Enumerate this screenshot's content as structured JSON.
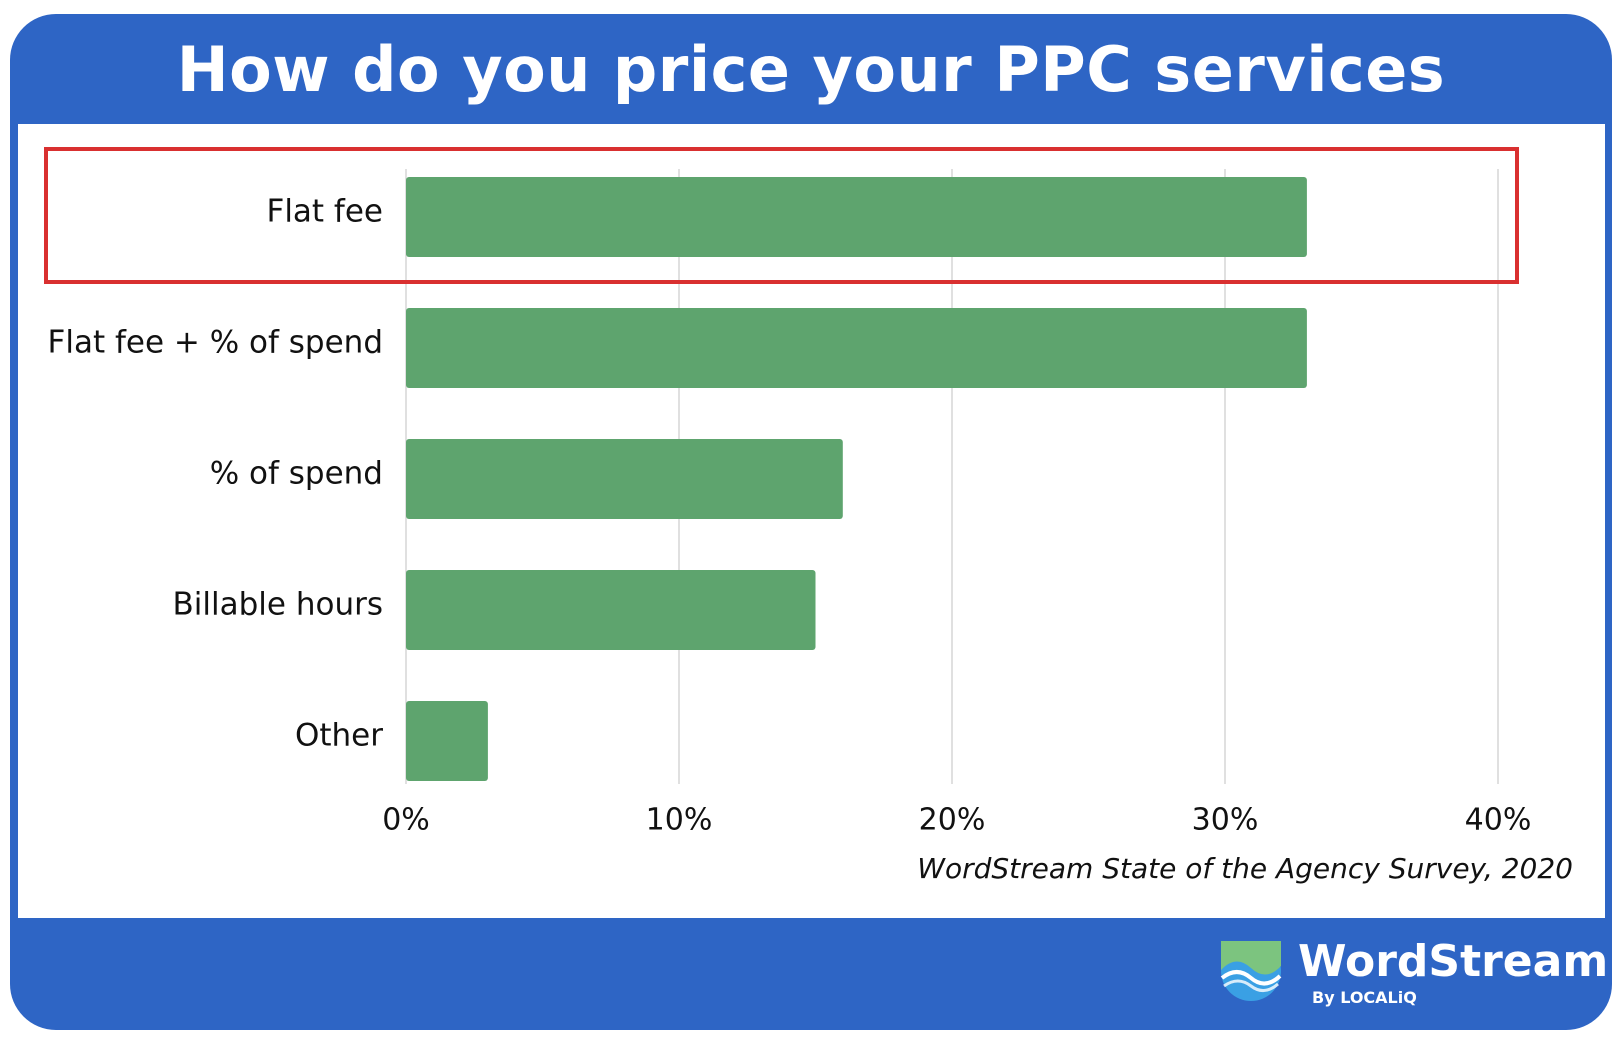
{
  "header": {
    "title": "How do you price your PPC services"
  },
  "chart_data": {
    "type": "bar",
    "orientation": "horizontal",
    "categories": [
      "Flat fee",
      "Flat fee + % of spend",
      "% of spend",
      "Billable hours",
      "Other"
    ],
    "values": [
      33,
      33,
      16,
      15,
      3
    ],
    "x_ticks": [
      "0%",
      "10%",
      "20%",
      "30%",
      "40%"
    ],
    "xlim": [
      0,
      40
    ],
    "unit": "%",
    "grid": true,
    "highlighted_category": "Flat fee",
    "title": "How do you price your PPC services",
    "xlabel": "",
    "ylabel": ""
  },
  "source": {
    "text": "WordStream State of the Agency Survey, 2020"
  },
  "brand": {
    "name": "WordStream",
    "sub": "By LOCALiQ"
  },
  "colors": {
    "frame": "#2e65c5",
    "bar": "#5ea46e",
    "highlight": "#d93030",
    "grid": "#d6d6d6"
  }
}
